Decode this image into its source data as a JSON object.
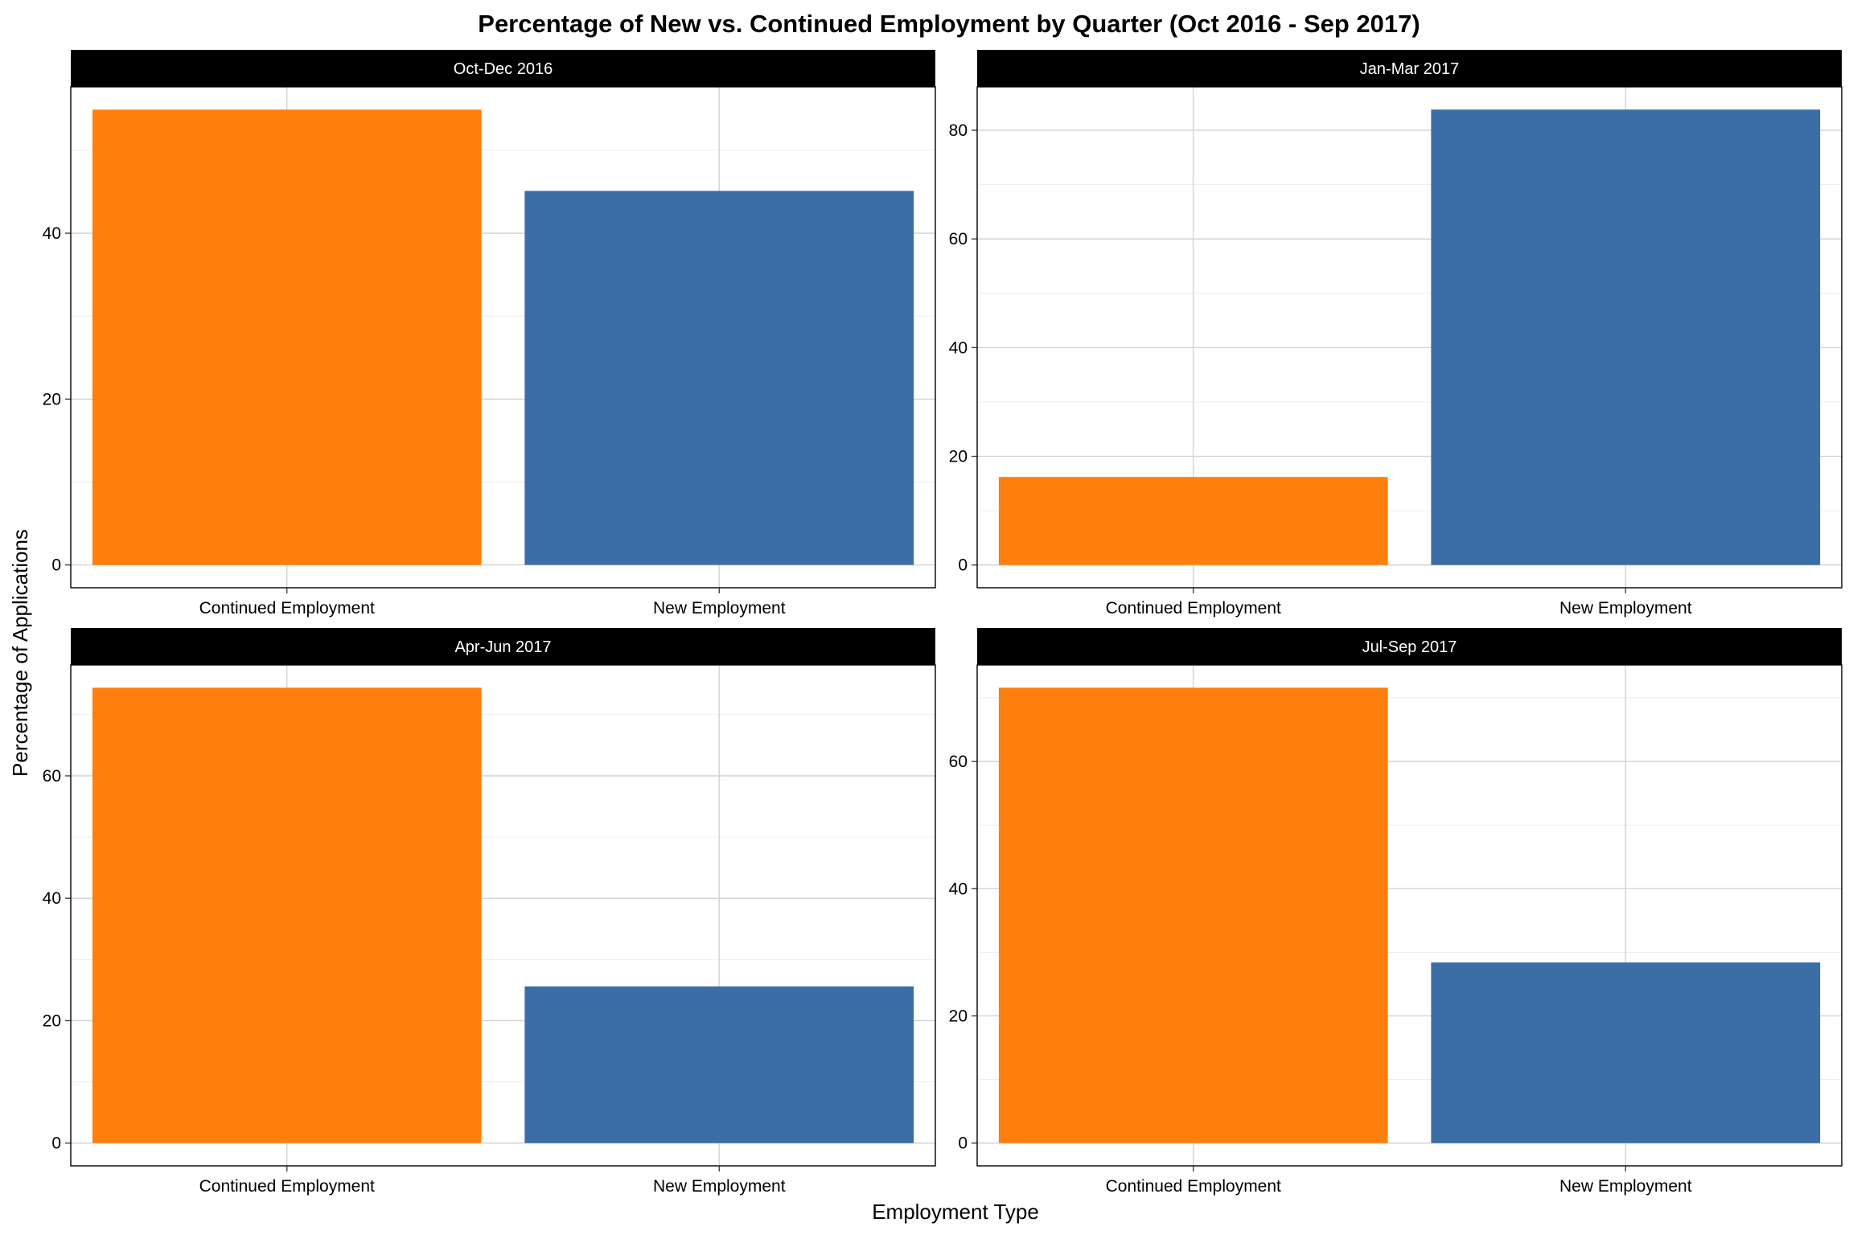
{
  "chart_data": {
    "type": "bar",
    "title": "Percentage of New vs. Continued Employment by Quarter (Oct 2016 - Sep 2017)",
    "xlabel": "Employment Type",
    "ylabel": "Percentage of Applications",
    "categories": [
      "Continued Employment",
      "New Employment"
    ],
    "colors": {
      "Continued Employment": "#ff7f0e",
      "New Employment": "#3a6ea5"
    },
    "facet_background": "#000000",
    "grid": true,
    "legend": "none",
    "panels": [
      {
        "label": "Oct-Dec 2016",
        "values": [
          54.9,
          45.1
        ],
        "ylim": [
          -2.75,
          57.65
        ],
        "yticks": [
          0,
          20,
          40
        ]
      },
      {
        "label": "Jan-Mar 2017",
        "values": [
          16.2,
          83.8
        ],
        "ylim": [
          -4.19,
          87.99
        ],
        "yticks": [
          0,
          20,
          40,
          60,
          80
        ]
      },
      {
        "label": "Apr-Jun 2017",
        "values": [
          74.4,
          25.6
        ],
        "ylim": [
          -3.72,
          78.12
        ],
        "yticks": [
          0,
          20,
          40,
          60
        ]
      },
      {
        "label": "Jul-Sep 2017",
        "values": [
          71.6,
          28.4
        ],
        "ylim": [
          -3.58,
          75.18
        ],
        "yticks": [
          0,
          20,
          40,
          60
        ]
      }
    ]
  }
}
